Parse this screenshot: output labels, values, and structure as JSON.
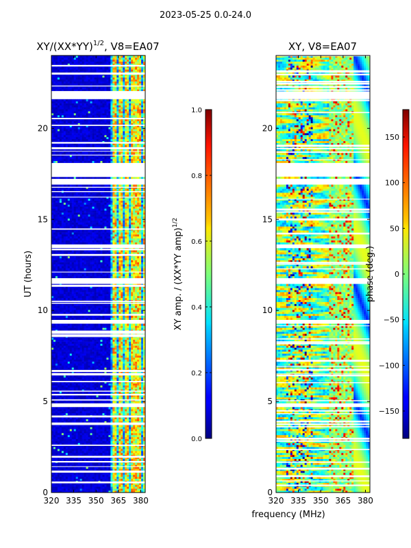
{
  "suptitle": "2023-05-25 0.0-24.0",
  "chart_data": [
    {
      "type": "heatmap",
      "name": "amplitude-ratio",
      "title_main": "XY/(XX*YY)",
      "title_sup": "1/2",
      "title_tail": ", V8=EA07",
      "xlabel": "",
      "ylabel": "UT (hours)",
      "xlim": [
        320,
        383
      ],
      "ylim": [
        0,
        24
      ],
      "xticks": [
        320,
        335,
        350,
        365,
        380
      ],
      "yticks": [
        0,
        5,
        10,
        15,
        20
      ],
      "colorbar": {
        "label_main": "XY amp. / (XX*YY amp)",
        "label_sup": "1/2",
        "range": [
          0.0,
          1.0
        ],
        "ticks": [
          "0.0",
          "0.2",
          "0.4",
          "0.6",
          "0.8",
          "1.0"
        ],
        "colormap": "jet"
      },
      "bright_channels_mhz": [
        362.0,
        363.5,
        366.0,
        367.0,
        370.0,
        371.5,
        374.0,
        376.0,
        378.0,
        380.0,
        382.0
      ],
      "flagged_hours": [
        [
          16.9,
          17.2
        ],
        [
          17.4,
          18.1
        ],
        [
          21.6,
          22.0
        ],
        [
          13.4,
          13.6
        ],
        [
          11.5,
          11.8
        ],
        [
          9.3,
          9.5
        ],
        [
          4.7,
          4.9
        ]
      ]
    },
    {
      "type": "heatmap",
      "name": "phase",
      "title": "XY, V8=EA07",
      "xlabel": "frequency (MHz)",
      "ylabel": "",
      "xlim": [
        320,
        383
      ],
      "ylim": [
        0,
        24
      ],
      "xticks": [
        320,
        335,
        350,
        365,
        380
      ],
      "yticks": [
        0,
        5,
        10,
        15,
        20
      ],
      "colorbar": {
        "label": "phase (deg.)",
        "range": [
          -180,
          180
        ],
        "ticks": [
          "−150",
          "−100",
          "−50",
          "0",
          "50",
          "100",
          "150"
        ],
        "colormap": "jet"
      },
      "flagged_hours": [
        [
          16.9,
          17.2
        ],
        [
          17.4,
          18.1
        ],
        [
          21.6,
          22.0
        ],
        [
          13.4,
          13.6
        ],
        [
          11.5,
          11.8
        ],
        [
          9.3,
          9.5
        ],
        [
          4.7,
          4.9
        ]
      ]
    }
  ]
}
